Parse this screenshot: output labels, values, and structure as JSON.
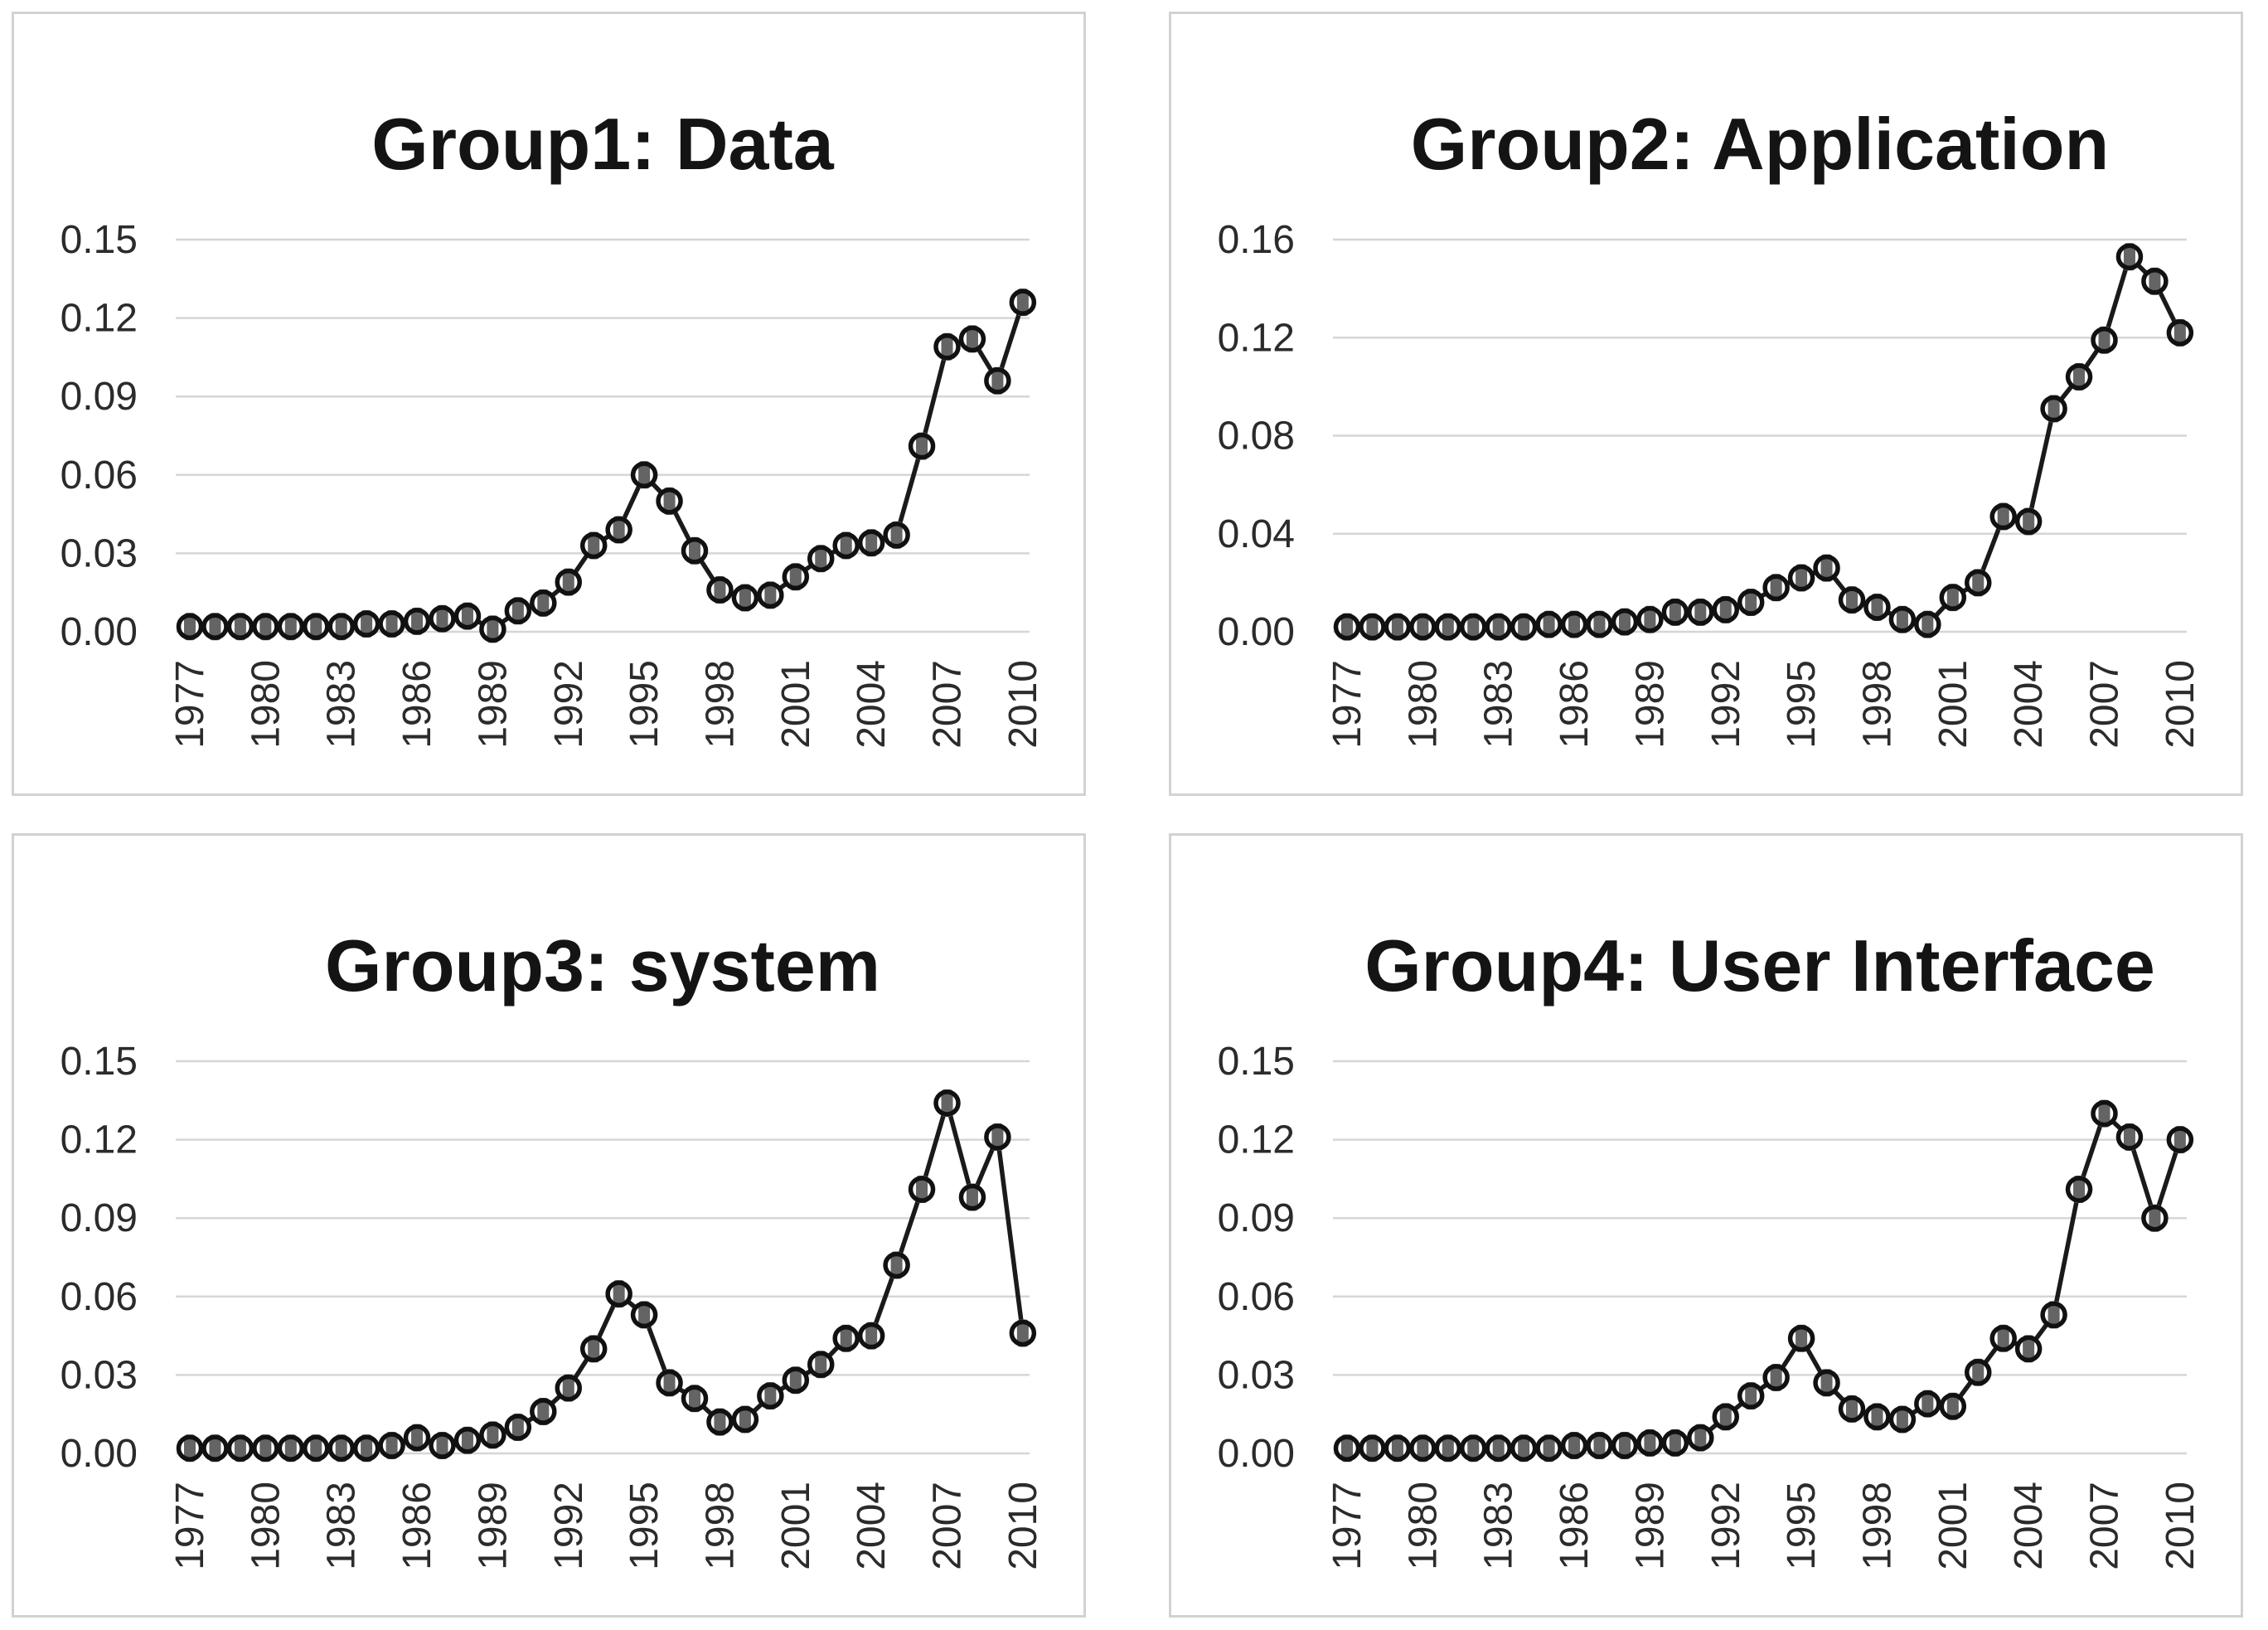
{
  "page": {
    "background": "#ffffff"
  },
  "styles": {
    "panel_border": "#d2d2d2",
    "panel_bg": "#ffffff",
    "grid_color": "#d6d6d6",
    "line_color": "#1a1a1a",
    "marker_ring": "#111111",
    "marker_core": "#646464",
    "marker_bg": "#ffffff",
    "title_color": "#141414",
    "tick_color": "#2b2b2b"
  },
  "chart_data": [
    {
      "type": "line",
      "title": "Group1: Data",
      "xlabel": "",
      "ylabel": "",
      "ylim": [
        0,
        0.15
      ],
      "grid": true,
      "legend_position": "none",
      "ytick_labels": [
        "0.00",
        "0.03",
        "0.06",
        "0.09",
        "0.12",
        "0.15"
      ],
      "ytick_values": [
        0,
        0.03,
        0.06,
        0.09,
        0.12,
        0.15
      ],
      "xtick_years": [
        1977,
        1980,
        1983,
        1986,
        1989,
        1992,
        1995,
        1998,
        2001,
        2004,
        2007,
        2010
      ],
      "x": [
        1977,
        1978,
        1979,
        1980,
        1981,
        1982,
        1983,
        1984,
        1985,
        1986,
        1987,
        1988,
        1989,
        1990,
        1991,
        1992,
        1993,
        1994,
        1995,
        1996,
        1997,
        1998,
        1999,
        2000,
        2001,
        2002,
        2003,
        2004,
        2005,
        2006,
        2007,
        2008,
        2009,
        2010
      ],
      "values": [
        0.002,
        0.002,
        0.002,
        0.002,
        0.002,
        0.002,
        0.002,
        0.003,
        0.003,
        0.004,
        0.005,
        0.006,
        0.001,
        0.008,
        0.011,
        0.019,
        0.033,
        0.039,
        0.06,
        0.05,
        0.031,
        0.016,
        0.013,
        0.014,
        0.021,
        0.028,
        0.033,
        0.034,
        0.037,
        0.071,
        0.109,
        0.112,
        0.096,
        0.126
      ]
    },
    {
      "type": "line",
      "title": "Group2: Application",
      "xlabel": "",
      "ylabel": "",
      "ylim": [
        0,
        0.16
      ],
      "grid": true,
      "legend_position": "none",
      "ytick_labels": [
        "0.00",
        "0.04",
        "0.08",
        "0.12",
        "0.16"
      ],
      "ytick_values": [
        0,
        0.04,
        0.08,
        0.12,
        0.16
      ],
      "xtick_years": [
        1977,
        1980,
        1983,
        1986,
        1989,
        1992,
        1995,
        1998,
        2001,
        2004,
        2007,
        2010
      ],
      "x": [
        1977,
        1978,
        1979,
        1980,
        1981,
        1982,
        1983,
        1984,
        1985,
        1986,
        1987,
        1988,
        1989,
        1990,
        1991,
        1992,
        1993,
        1994,
        1995,
        1996,
        1997,
        1998,
        1999,
        2000,
        2001,
        2002,
        2003,
        2004,
        2005,
        2006,
        2007,
        2008,
        2009,
        2010
      ],
      "values": [
        0.002,
        0.002,
        0.002,
        0.002,
        0.002,
        0.002,
        0.002,
        0.002,
        0.003,
        0.003,
        0.003,
        0.004,
        0.005,
        0.008,
        0.008,
        0.009,
        0.012,
        0.018,
        0.022,
        0.026,
        0.013,
        0.01,
        0.005,
        0.003,
        0.014,
        0.02,
        0.047,
        0.045,
        0.091,
        0.104,
        0.119,
        0.153,
        0.143,
        0.122
      ]
    },
    {
      "type": "line",
      "title": "Group3: system",
      "xlabel": "",
      "ylabel": "",
      "ylim": [
        0,
        0.15
      ],
      "grid": true,
      "legend_position": "none",
      "ytick_labels": [
        "0.00",
        "0.03",
        "0.06",
        "0.09",
        "0.12",
        "0.15"
      ],
      "ytick_values": [
        0,
        0.03,
        0.06,
        0.09,
        0.12,
        0.15
      ],
      "xtick_years": [
        1977,
        1980,
        1983,
        1986,
        1989,
        1992,
        1995,
        1998,
        2001,
        2004,
        2007,
        2010
      ],
      "x": [
        1977,
        1978,
        1979,
        1980,
        1981,
        1982,
        1983,
        1984,
        1985,
        1986,
        1987,
        1988,
        1989,
        1990,
        1991,
        1992,
        1993,
        1994,
        1995,
        1996,
        1997,
        1998,
        1999,
        2000,
        2001,
        2002,
        2003,
        2004,
        2005,
        2006,
        2007,
        2008,
        2009,
        2010
      ],
      "values": [
        0.002,
        0.002,
        0.002,
        0.002,
        0.002,
        0.002,
        0.002,
        0.002,
        0.003,
        0.006,
        0.003,
        0.005,
        0.007,
        0.01,
        0.016,
        0.025,
        0.04,
        0.061,
        0.053,
        0.027,
        0.021,
        0.012,
        0.013,
        0.022,
        0.028,
        0.034,
        0.044,
        0.045,
        0.072,
        0.101,
        0.134,
        0.098,
        0.121,
        0.046
      ]
    },
    {
      "type": "line",
      "title": "Group4: User Interface",
      "xlabel": "",
      "ylabel": "",
      "ylim": [
        0,
        0.15
      ],
      "grid": true,
      "legend_position": "none",
      "ytick_labels": [
        "0.00",
        "0.03",
        "0.06",
        "0.09",
        "0.12",
        "0.15"
      ],
      "ytick_values": [
        0,
        0.03,
        0.06,
        0.09,
        0.12,
        0.15
      ],
      "xtick_years": [
        1977,
        1980,
        1983,
        1986,
        1989,
        1992,
        1995,
        1998,
        2001,
        2004,
        2007,
        2010
      ],
      "x": [
        1977,
        1978,
        1979,
        1980,
        1981,
        1982,
        1983,
        1984,
        1985,
        1986,
        1987,
        1988,
        1989,
        1990,
        1991,
        1992,
        1993,
        1994,
        1995,
        1996,
        1997,
        1998,
        1999,
        2000,
        2001,
        2002,
        2003,
        2004,
        2005,
        2006,
        2007,
        2008,
        2009,
        2010
      ],
      "values": [
        0.002,
        0.002,
        0.002,
        0.002,
        0.002,
        0.002,
        0.002,
        0.002,
        0.002,
        0.003,
        0.003,
        0.003,
        0.004,
        0.004,
        0.006,
        0.014,
        0.022,
        0.029,
        0.044,
        0.027,
        0.017,
        0.014,
        0.013,
        0.019,
        0.018,
        0.031,
        0.044,
        0.04,
        0.053,
        0.101,
        0.13,
        0.121,
        0.09,
        0.12
      ]
    }
  ]
}
